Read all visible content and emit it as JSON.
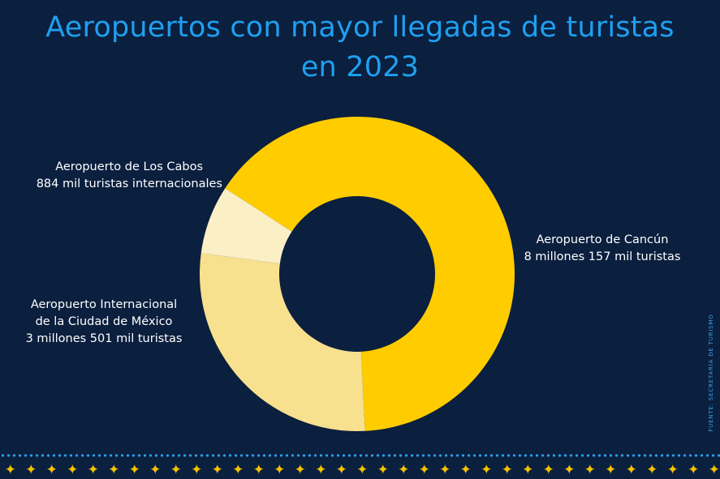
{
  "title": {
    "line1": "Aeropuertos con mayor llegadas de turistas",
    "line2": "en 2023"
  },
  "source": "FUENTE: SECRETARÍA DE TURISMO",
  "colors": {
    "background": "#0b1f3e",
    "title": "#1ea0f0",
    "cancun": "#ffcc00",
    "cdmx": "#f7e08e",
    "los_cabos": "#fbefc6",
    "border_dots": "#2aa0e8",
    "border_stars": "#f5c200"
  },
  "chart_data": {
    "type": "pie",
    "style": "donut",
    "title": "Aeropuertos con mayor llegadas de turistas en 2023",
    "categories": [
      "Aeropuerto de Cancún",
      "Aeropuerto Internacional de la Ciudad de México",
      "Aeropuerto de Los Cabos"
    ],
    "values": [
      8157000,
      3501000,
      884000
    ],
    "slice_colors": [
      "#ffcc00",
      "#f7e08e",
      "#fbefc6"
    ],
    "labels": {
      "cancun": {
        "line1": "Aeropuerto de Cancún",
        "line2": "8 millones 157 mil turistas"
      },
      "cdmx": {
        "line1": "Aeropuerto Internacional",
        "line2": "de la Ciudad de México",
        "line3": "3 millones 501 mil turistas"
      },
      "los_cabos": {
        "line1": "Aeropuerto de Los Cabos",
        "line2": "884 mil turistas internacionales"
      }
    }
  }
}
